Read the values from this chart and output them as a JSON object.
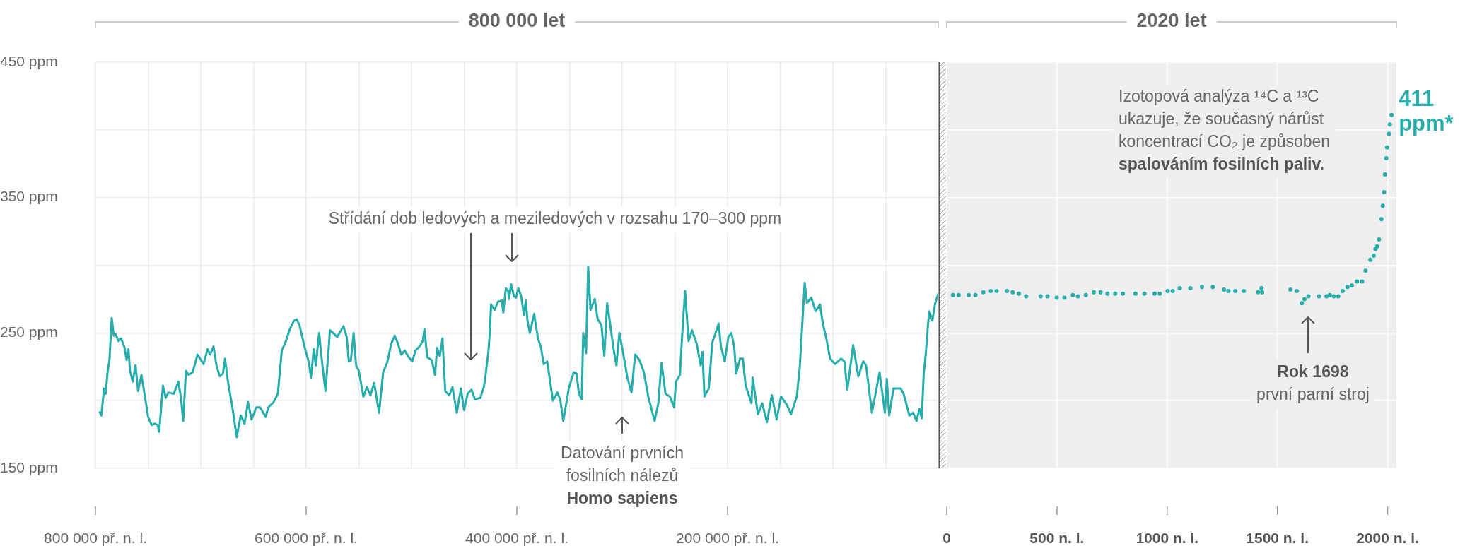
{
  "chart_data": [
    {
      "type": "line",
      "title": "800 000 let",
      "color": "#27adab",
      "x": [
        -796200,
        -794400,
        -791800,
        -790300,
        -788500,
        -786700,
        -784600,
        -782600,
        -780800,
        -778200,
        -775600,
        -772300,
        -770500,
        -768700,
        -767200,
        -764600,
        -762000,
        -759500,
        -756400,
        -751800,
        -750000,
        -746700,
        -743600,
        -741000,
        -739500,
        -735900,
        -733300,
        -730800,
        -725600,
        -721300,
        -719000,
        -716700,
        -714100,
        -711500,
        -707700,
        -703100,
        -697400,
        -693600,
        -691000,
        -688000,
        -685100,
        -682100,
        -679000,
        -677000,
        -674400,
        -669800,
        -665900,
        -662100,
        -658500,
        -655200,
        -651800,
        -647400,
        -643600,
        -638500,
        -635900,
        -630800,
        -626900,
        -623100,
        -619200,
        -615400,
        -611600,
        -609000,
        -606400,
        -601300,
        -597400,
        -595400,
        -592800,
        -590800,
        -587700,
        -584600,
        -581600,
        -577400,
        -574400,
        -570500,
        -564600,
        -561500,
        -559500,
        -557500,
        -554900,
        -552600,
        -550000,
        -545700,
        -542300,
        -539000,
        -535400,
        -530800,
        -526900,
        -523100,
        -519200,
        -515900,
        -512800,
        -509700,
        -506400,
        -502600,
        -499300,
        -496200,
        -492400,
        -489300,
        -487700,
        -485100,
        -480800,
        -477700,
        -475700,
        -473100,
        -470600,
        -468000,
        -464100,
        -461100,
        -457000,
        -453100,
        -450100,
        -446700,
        -443100,
        -439800,
        -434700,
        -431300,
        -429500,
        -427000,
        -425700,
        -424500,
        -421100,
        -418000,
        -414200,
        -412900,
        -410400,
        -408300,
        -407400,
        -405500,
        -402700,
        -400800,
        -398600,
        -395900,
        -393200,
        -391500,
        -389900,
        -387700,
        -383600,
        -380000,
        -377300,
        -374500,
        -371200,
        -365800,
        -361600,
        -358900,
        -355900,
        -350700,
        -346000,
        -343300,
        -341100,
        -338400,
        -337000,
        -334300,
        -332300,
        -330100,
        -326000,
        -323300,
        -319700,
        -317000,
        -314300,
        -311500,
        -308200,
        -305500,
        -302700,
        -300000,
        -295100,
        -291200,
        -287700,
        -283600,
        -279400,
        -275300,
        -269300,
        -265700,
        -262700,
        -258900,
        -254800,
        -250700,
        -249000,
        -245200,
        -242500,
        -240300,
        -237000,
        -233700,
        -229300,
        -225500,
        -223800,
        -221900,
        -217800,
        -214500,
        -211800,
        -208500,
        -206300,
        -202700,
        -199200,
        -196400,
        -193700,
        -191800,
        -188200,
        -185500,
        -182800,
        -177300,
        -176200,
        -171200,
        -167100,
        -162600,
        -158000,
        -153400,
        -149300,
        -143800,
        -139700,
        -134300,
        -131500,
        -128800,
        -126800,
        -124600,
        -120500,
        -116400,
        -112300,
        -109600,
        -106000,
        -102700,
        -97800,
        -92300,
        -89100,
        -86300,
        -80800,
        -75900,
        -71200,
        -68500,
        -63000,
        -55700,
        -50700,
        -48800,
        -46600,
        -42500,
        -35700,
        -32900,
        -27400,
        -23900,
        -20600,
        -17900,
        -15700,
        -13800,
        -11900,
        -9700,
        -8400,
        -5600,
        -2900,
        0
      ],
      "values": [
        192,
        189,
        209,
        205,
        221,
        230,
        261,
        248,
        249,
        244,
        246,
        239,
        230,
        238,
        222,
        214,
        226,
        207,
        219,
        197,
        188,
        182,
        183,
        182,
        177,
        211,
        202,
        206,
        205,
        214,
        203,
        185,
        222,
        219,
        221,
        234,
        227,
        238,
        234,
        240,
        226,
        218,
        220,
        231,
        215,
        194,
        173,
        189,
        183,
        199,
        186,
        195,
        195,
        188,
        195,
        199,
        205,
        237,
        244,
        253,
        259,
        260,
        256,
        239,
        228,
        217,
        238,
        226,
        250,
        226,
        207,
        252,
        250,
        247,
        255,
        247,
        229,
        230,
        250,
        226,
        222,
        203,
        210,
        204,
        213,
        191,
        221,
        228,
        242,
        248,
        242,
        234,
        237,
        232,
        229,
        237,
        240,
        244,
        253,
        232,
        230,
        219,
        239,
        233,
        246,
        207,
        204,
        210,
        191,
        209,
        193,
        205,
        208,
        201,
        202,
        210,
        220,
        236,
        250,
        271,
        267,
        273,
        274,
        265,
        283,
        281,
        275,
        286,
        277,
        276,
        283,
        277,
        263,
        274,
        259,
        250,
        264,
        246,
        240,
        227,
        229,
        200,
        206,
        201,
        185,
        209,
        221,
        220,
        205,
        201,
        250,
        235,
        299,
        267,
        275,
        260,
        256,
        233,
        272,
        257,
        238,
        226,
        250,
        239,
        217,
        206,
        234,
        230,
        221,
        203,
        185,
        198,
        228,
        205,
        203,
        195,
        214,
        219,
        256,
        281,
        244,
        252,
        242,
        226,
        236,
        203,
        209,
        243,
        249,
        257,
        240,
        229,
        247,
        250,
        240,
        220,
        231,
        231,
        211,
        198,
        217,
        190,
        198,
        184,
        204,
        186,
        203,
        197,
        190,
        203,
        224,
        260,
        287,
        272,
        276,
        266,
        271,
        257,
        245,
        231,
        227,
        231,
        229,
        208,
        241,
        218,
        229,
        226,
        191,
        221,
        191,
        216,
        189,
        209,
        209,
        205,
        189,
        191,
        185,
        194,
        187,
        220,
        234,
        257,
        266,
        259,
        272,
        279
      ],
      "xlim": [
        -800000,
        0
      ],
      "xticks": [
        {
          "value": -800000,
          "label": "800 000 př. n. l."
        },
        {
          "value": -750000,
          "label": null
        },
        {
          "value": -700000,
          "label": null
        },
        {
          "value": -650000,
          "label": null
        },
        {
          "value": -600000,
          "label": "600 000 př. n. l."
        },
        {
          "value": -550000,
          "label": null
        },
        {
          "value": -500000,
          "label": null
        },
        {
          "value": -450000,
          "label": null
        },
        {
          "value": -400000,
          "label": "400 000 př. n. l."
        },
        {
          "value": -350000,
          "label": null
        },
        {
          "value": -300000,
          "label": null
        },
        {
          "value": -250000,
          "label": null
        },
        {
          "value": -200000,
          "label": "200 000 př. n. l."
        },
        {
          "value": -150000,
          "label": null
        },
        {
          "value": -100000,
          "label": null
        },
        {
          "value": -50000,
          "label": null
        },
        {
          "value": 0,
          "label": null
        }
      ],
      "ylim": [
        150,
        450
      ],
      "yticks": [
        {
          "value": 150,
          "label": "150 ppm"
        },
        {
          "value": 200,
          "label": null
        },
        {
          "value": 250,
          "label": "250 ppm"
        },
        {
          "value": 300,
          "label": null
        },
        {
          "value": 350,
          "label": "350 ppm"
        },
        {
          "value": 400,
          "label": null
        },
        {
          "value": 450,
          "label": "450 ppm"
        }
      ],
      "grid": true,
      "annotations": [
        "Střídání dob ledových a meziledových v rozsahu 170–300 ppm",
        "Datování prvních\nfosilních nálezů\nHomo sapiens"
      ]
    },
    {
      "type": "scatter",
      "title": "2020 let",
      "color": "#27adab",
      "marker": "circle",
      "x": [
        28,
        54,
        100,
        130,
        166,
        200,
        226,
        273,
        299,
        327,
        360,
        426,
        457,
        499,
        534,
        572,
        595,
        631,
        667,
        698,
        729,
        764,
        799,
        856,
        897,
        943,
        966,
        1002,
        1025,
        1057,
        1105,
        1158,
        1207,
        1258,
        1278,
        1309,
        1348,
        1413,
        1428,
        1431,
        1559,
        1588,
        1611,
        1623,
        1641,
        1689,
        1723,
        1738,
        1756,
        1776,
        1796,
        1818,
        1838,
        1861,
        1884,
        1900,
        1922,
        1937,
        1945,
        1953,
        1961,
        1972,
        1978,
        1984,
        1988,
        1994,
        1998,
        2006,
        2010,
        2018
      ],
      "values": [
        278,
        278,
        278,
        278,
        280,
        281,
        281,
        281,
        280,
        279,
        277,
        277,
        277,
        276,
        276,
        278,
        277,
        278,
        280,
        280,
        279,
        279,
        279,
        279,
        279,
        279,
        279,
        281,
        281,
        283,
        283,
        284,
        284,
        282,
        281,
        281,
        281,
        280,
        283,
        280,
        282,
        281,
        272,
        275,
        277,
        277,
        277,
        278,
        277,
        277,
        281,
        284,
        285,
        288,
        288,
        296,
        304,
        307,
        312,
        314,
        319,
        334,
        344,
        354,
        367,
        379,
        387,
        397,
        404,
        411
      ],
      "value_labels": [
        null,
        null,
        null,
        null,
        null,
        null,
        null,
        null,
        null,
        null,
        null,
        null,
        null,
        null,
        null,
        null,
        null,
        null,
        null,
        null,
        null,
        null,
        null,
        null,
        null,
        null,
        null,
        null,
        null,
        null,
        null,
        null,
        null,
        null,
        null,
        null,
        null,
        null,
        null,
        null,
        null,
        null,
        null,
        null,
        null,
        null,
        null,
        null,
        null,
        null,
        null,
        null,
        null,
        null,
        null,
        null,
        null,
        null,
        null,
        null,
        null,
        null,
        null,
        null,
        null,
        null,
        null,
        null,
        null,
        "411 ppm*"
      ],
      "xlim": [
        0,
        2040
      ],
      "xticks": [
        0,
        {
          "value": 500,
          "label": "500 n. l."
        },
        {
          "value": 1000,
          "label": "1000 n. l."
        },
        {
          "value": 1500,
          "label": "1500 n. l."
        },
        {
          "value": 2000,
          "label": "2000 n. l."
        }
      ],
      "ylim": [
        150,
        450
      ],
      "yticks": [
        150,
        200,
        250,
        300,
        350,
        400,
        450
      ],
      "tick_labels": "x",
      "grid": true,
      "annotations": [
        "Izotopová analýza ¹⁴C a ¹³C\nukazuje, že současný nárůst\nkoncentrací CO₂ je způsoben\nspalováním fosilních paliv.",
        "Rok 1698\nprvní parní stroj"
      ]
    }
  ]
}
